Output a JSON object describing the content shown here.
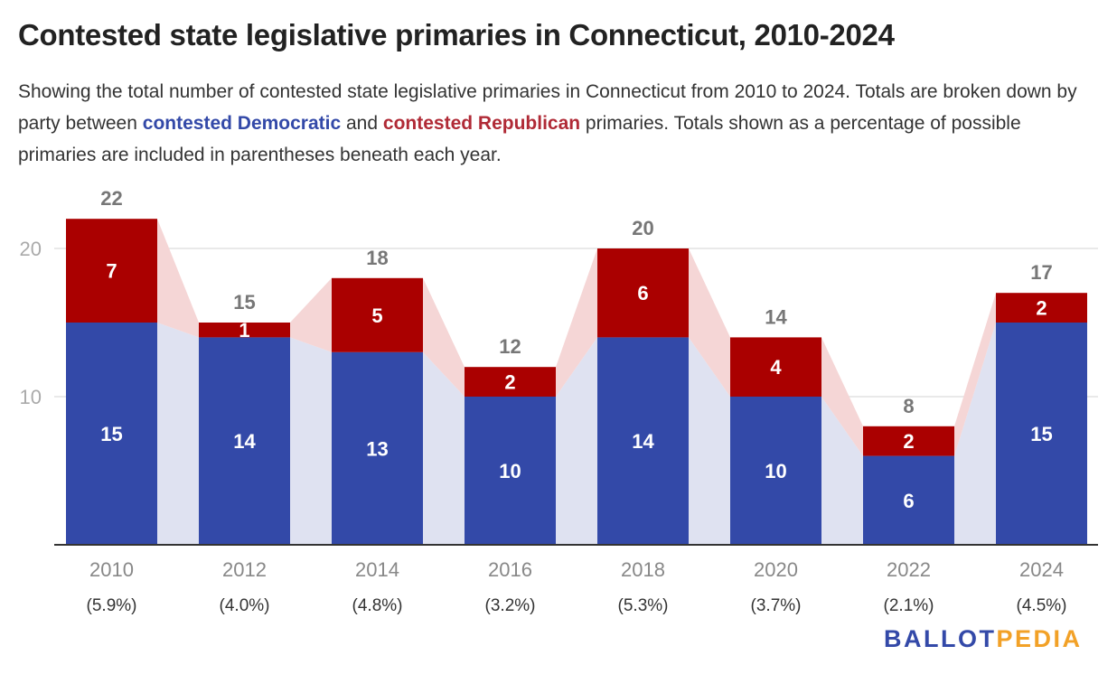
{
  "title": "Contested state legislative primaries in Connecticut, 2010-2024",
  "description": {
    "part1": "Showing the total number of contested state legislative primaries in Connecticut from 2010 to 2024. Totals are broken down by party between ",
    "dem_label": "contested Democratic",
    "part2": " and ",
    "rep_label": "contested Republican",
    "part3": " primaries. Totals shown as a percentage of possible primaries are included in parentheses beneath each year."
  },
  "logo": {
    "part1": "BALLOT",
    "part2": "PEDIA"
  },
  "chart_data": {
    "type": "bar",
    "stacked": true,
    "categories": [
      "2010",
      "2012",
      "2014",
      "2016",
      "2018",
      "2020",
      "2022",
      "2024"
    ],
    "percentages": [
      "(5.9%)",
      "(4.0%)",
      "(4.8%)",
      "(3.2%)",
      "(5.3%)",
      "(3.7%)",
      "(2.1%)",
      "(4.5%)"
    ],
    "series": [
      {
        "name": "contested Democratic",
        "values": [
          15,
          14,
          13,
          10,
          14,
          10,
          6,
          15
        ],
        "color": "#3349a8",
        "connector_color": "#dfe2f1"
      },
      {
        "name": "contested Republican",
        "values": [
          7,
          1,
          5,
          2,
          6,
          4,
          2,
          2
        ],
        "color": "#aa0000",
        "connector_color": "#f5d6d6"
      }
    ],
    "totals": [
      22,
      15,
      18,
      12,
      20,
      14,
      8,
      17
    ],
    "yticks": [
      10,
      20
    ],
    "ylim": [
      0,
      22
    ],
    "grid": true,
    "legend": "none"
  }
}
